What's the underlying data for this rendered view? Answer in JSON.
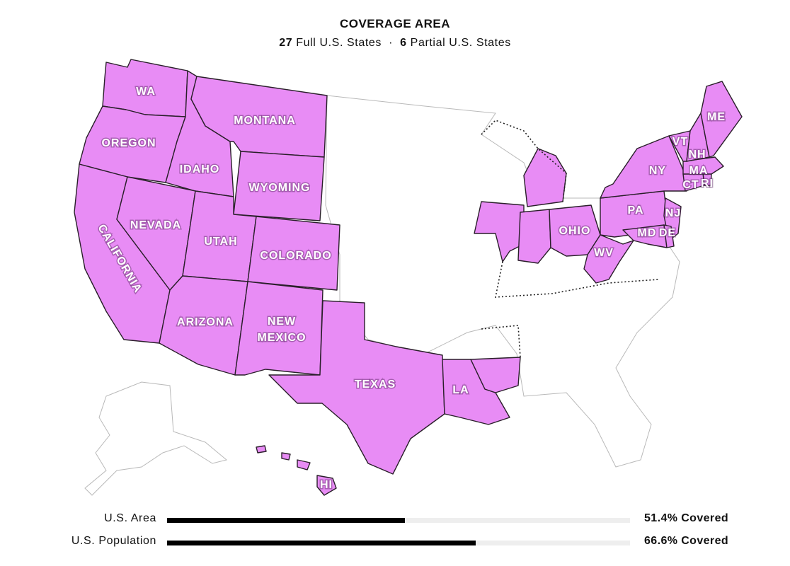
{
  "header": {
    "title": "COVERAGE AREA",
    "full_count": "27",
    "full_label": "Full U.S. States",
    "separator": "·",
    "partial_count": "6",
    "partial_label": "Partial U.S. States"
  },
  "map": {
    "covered_color": "#e88cf5",
    "uncovered_color": "#ffffff",
    "state_labels": {
      "wa": "WA",
      "oregon": "OREGON",
      "california": "CALIFORNIA",
      "nevada": "NEVADA",
      "idaho": "IDAHO",
      "montana": "MONTANA",
      "wyoming": "WYOMING",
      "utah": "UTAH",
      "colorado": "COLORADO",
      "arizona": "ARIZONA",
      "new_mexico_1": "NEW",
      "new_mexico_2": "MEXICO",
      "texas": "TEXAS",
      "la": "LA",
      "ohio": "OHIO",
      "wv": "WV",
      "pa": "PA",
      "ny": "NY",
      "nj": "NJ",
      "md": "MD",
      "de": "DE",
      "ct": "CT",
      "ri": "RI",
      "ma": "MA",
      "vt": "VT",
      "nh": "NH",
      "me": "ME",
      "hi": "HI"
    }
  },
  "stats": [
    {
      "label": "U.S. Area",
      "percent": 51.4,
      "value_text": "51.4% Covered"
    },
    {
      "label": "U.S. Population",
      "percent": 66.6,
      "value_text": "66.6% Covered"
    }
  ]
}
